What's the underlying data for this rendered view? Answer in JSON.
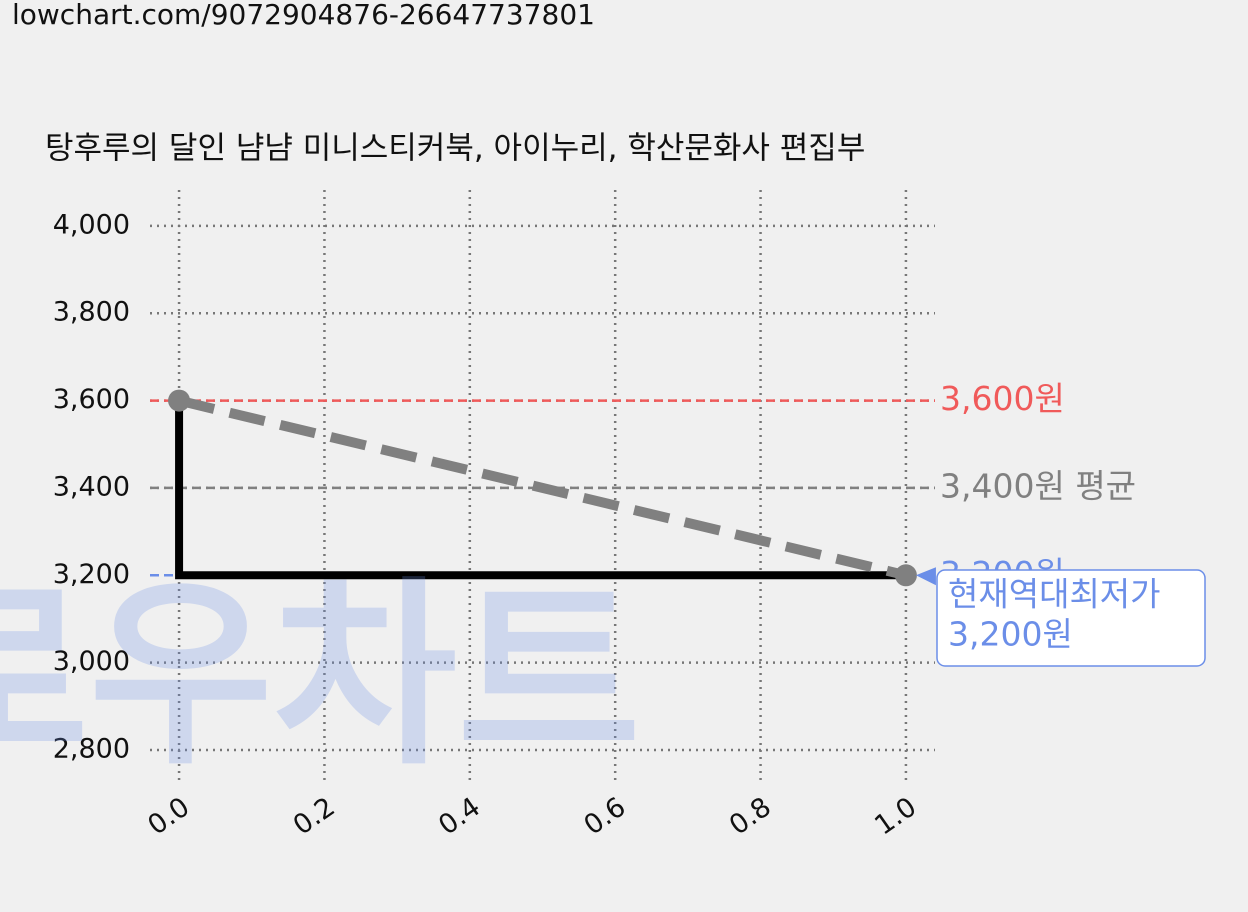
{
  "chart_data": {
    "type": "line",
    "source": "lowchart.com/9072904876-26647737801",
    "title": "탕후루의 달인 냠냠 미니스티커북, 아이누리, 학산문화사 편집부",
    "watermark": "로우차트",
    "xlim": [
      -0.04,
      1.04
    ],
    "xticks": [
      {
        "value": 0,
        "label": "0.0"
      },
      {
        "value": 0.2,
        "label": "0.2"
      },
      {
        "value": 0.4,
        "label": "0.4"
      },
      {
        "value": 0.6,
        "label": "0.6"
      },
      {
        "value": 0.8,
        "label": "0.8"
      },
      {
        "value": 1,
        "label": "1.0"
      }
    ],
    "ylim": [
      2720,
      4082
    ],
    "yticks": [
      {
        "value": 2800,
        "label": "2,800"
      },
      {
        "value": 3000,
        "label": "3,000"
      },
      {
        "value": 3200,
        "label": "3,200"
      },
      {
        "value": 3400,
        "label": "3,400"
      },
      {
        "value": 3600,
        "label": "3,600"
      },
      {
        "value": 3800,
        "label": "3,800"
      },
      {
        "value": 4000,
        "label": "4,000"
      }
    ],
    "grid": true,
    "hlines": [
      {
        "value": 3600,
        "label": "3,600원",
        "color": "#f05a5a"
      },
      {
        "value": 3400,
        "label": "3,400원 평균",
        "color": "#808080"
      },
      {
        "value": 3200,
        "label": "3,200원",
        "color": "#6b8ee8"
      }
    ],
    "series": [
      {
        "x": [
          0,
          0,
          1
        ],
        "values": [
          3600,
          3200,
          3200
        ],
        "color": "#000000",
        "style": "solid"
      },
      {
        "x": [
          0,
          1
        ],
        "values": [
          3600,
          3200
        ],
        "color": "#808080",
        "style": "dashed",
        "marker": true
      }
    ],
    "annotation": {
      "text": [
        "현재역대최저가",
        "3,200원"
      ],
      "x": 1,
      "y": 3200,
      "color": "#6b8ee8"
    }
  }
}
